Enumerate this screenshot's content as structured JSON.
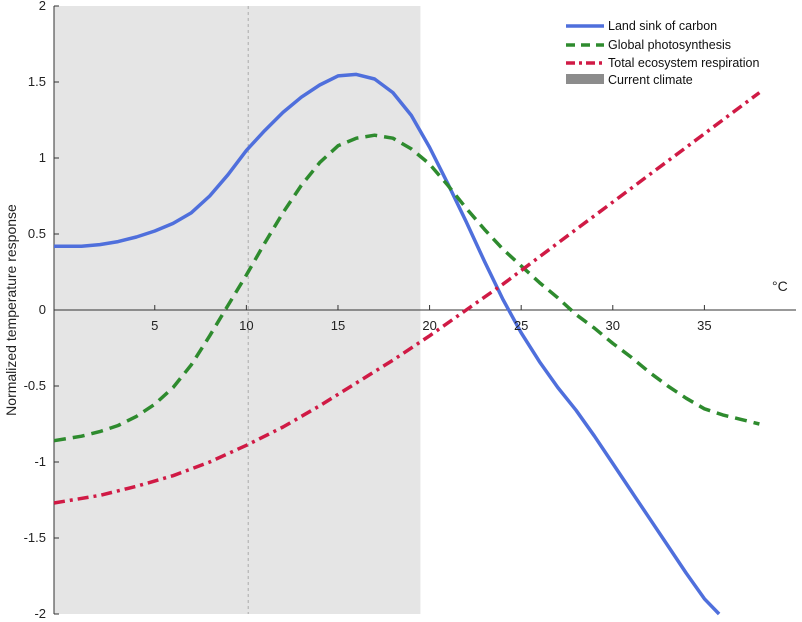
{
  "chart_data": {
    "type": "line",
    "xlabel": "°C",
    "ylabel": "Normalized temperature response",
    "xlim": [
      -0.5,
      40
    ],
    "ylim": [
      -2,
      2
    ],
    "x_ticks": [
      5,
      10,
      15,
      20,
      25,
      30,
      35
    ],
    "y_ticks": [
      2,
      1.5,
      1,
      0.5,
      0,
      -0.5,
      -1,
      -1.5,
      -2
    ],
    "y_tick_labels": [
      "2",
      "1.5",
      "1",
      "0.5",
      "0",
      "-0.5",
      "-1",
      "-1.5",
      "-2"
    ],
    "x_tick_labels": [
      "5",
      "10",
      "15",
      "20",
      "25",
      "30",
      "35"
    ],
    "shaded_region": {
      "label": "Current climate",
      "x_start": -0.5,
      "x_end": 19.5,
      "color": "#e5e5e5"
    },
    "reference_line_x": 10.1,
    "grid": false,
    "legend_position": "top-right",
    "series": [
      {
        "name": "Land sink of carbon",
        "color": "#4f6fdc",
        "style": "solid",
        "x": [
          -0.5,
          1,
          2,
          3,
          4,
          5,
          6,
          7,
          8,
          9,
          10,
          11,
          12,
          13,
          14,
          15,
          16,
          17,
          18,
          19,
          20,
          21,
          22,
          23,
          24,
          25,
          26,
          27,
          28,
          29,
          30,
          31,
          32,
          33,
          34,
          35,
          35.8
        ],
        "y": [
          0.42,
          0.42,
          0.43,
          0.45,
          0.48,
          0.52,
          0.57,
          0.64,
          0.75,
          0.89,
          1.05,
          1.18,
          1.3,
          1.4,
          1.48,
          1.54,
          1.55,
          1.52,
          1.43,
          1.28,
          1.07,
          0.83,
          0.58,
          0.32,
          0.07,
          -0.15,
          -0.34,
          -0.51,
          -0.66,
          -0.83,
          -1.01,
          -1.19,
          -1.37,
          -1.55,
          -1.73,
          -1.9,
          -2.0
        ]
      },
      {
        "name": "Global photosynthesis",
        "color": "#2e8b2e",
        "style": "dashed",
        "x": [
          -0.5,
          1,
          2,
          3,
          4,
          5,
          6,
          7,
          8,
          9,
          10,
          11,
          12,
          13,
          14,
          15,
          16,
          17,
          18,
          19,
          20,
          21,
          22,
          23,
          24,
          25,
          26,
          27,
          28,
          29,
          30,
          31,
          32,
          33,
          34,
          35,
          36,
          37,
          38
        ],
        "y": [
          -0.86,
          -0.83,
          -0.8,
          -0.76,
          -0.7,
          -0.62,
          -0.51,
          -0.36,
          -0.17,
          0.03,
          0.23,
          0.44,
          0.64,
          0.82,
          0.97,
          1.08,
          1.13,
          1.15,
          1.13,
          1.06,
          0.96,
          0.82,
          0.67,
          0.53,
          0.4,
          0.29,
          0.18,
          0.08,
          -0.03,
          -0.12,
          -0.22,
          -0.31,
          -0.41,
          -0.5,
          -0.58,
          -0.65,
          -0.69,
          -0.72,
          -0.75
        ]
      },
      {
        "name": "Total ecosystem respiration",
        "color": "#d01a45",
        "style": "dashdot",
        "x": [
          -0.5,
          2,
          4,
          6,
          8,
          10,
          12,
          14,
          16,
          18,
          20,
          22,
          24,
          26,
          28,
          30,
          32,
          34,
          36,
          38
        ],
        "y": [
          -1.27,
          -1.22,
          -1.16,
          -1.09,
          -1.0,
          -0.89,
          -0.77,
          -0.63,
          -0.48,
          -0.33,
          -0.17,
          0.0,
          0.17,
          0.35,
          0.53,
          0.71,
          0.89,
          1.07,
          1.25,
          1.43
        ]
      }
    ]
  }
}
